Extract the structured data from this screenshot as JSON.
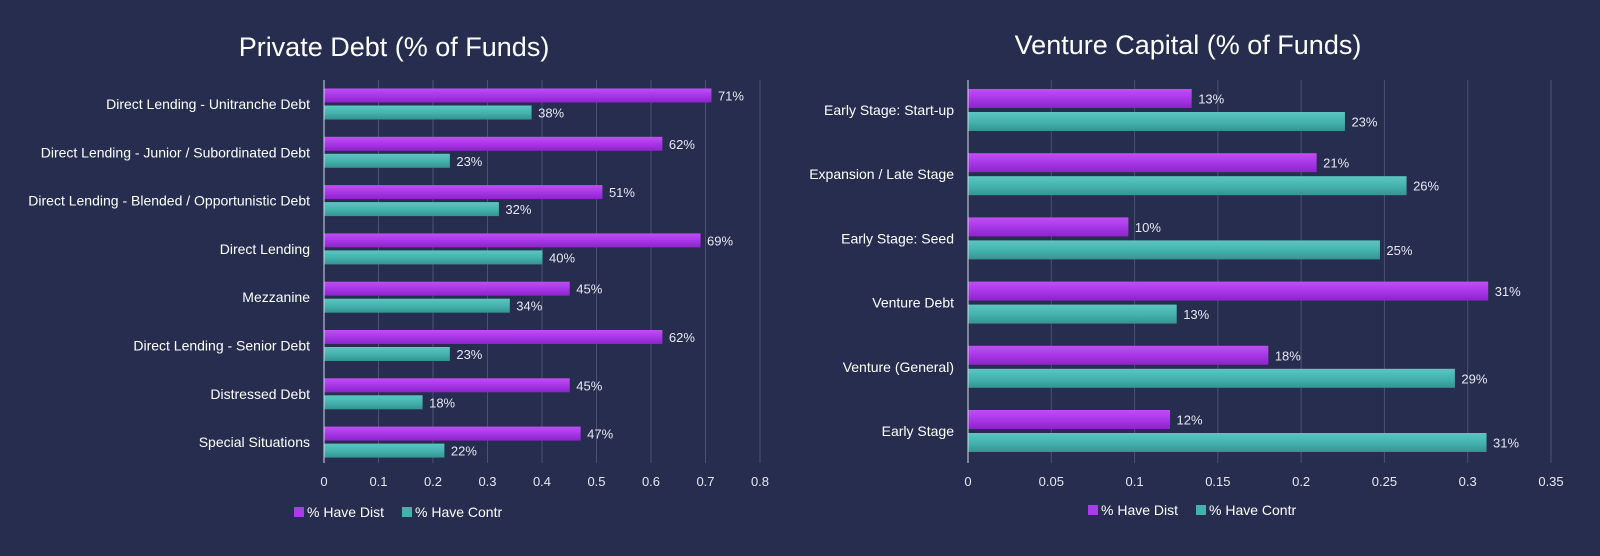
{
  "chart_data": [
    {
      "type": "bar",
      "orientation": "horizontal",
      "title": "Private Debt (% of Funds)",
      "xlabel": "",
      "ylabel": "",
      "xlim": [
        0,
        0.8
      ],
      "ticks": [
        "0",
        "0.1",
        "0.2",
        "0.3",
        "0.4",
        "0.5",
        "0.6",
        "0.7",
        "0.8"
      ],
      "grid": true,
      "legend_position": "bottom",
      "categories": [
        "Direct Lending - Unitranche Debt",
        "Direct Lending - Junior / Subordinated Debt",
        "Direct Lending - Blended / Opportunistic Debt",
        "Direct Lending",
        "Mezzanine",
        "Direct Lending - Senior Debt",
        "Distressed Debt",
        "Special Situations"
      ],
      "series": [
        {
          "name": "% Have Dist",
          "color": "#a93cea",
          "values": [
            0.71,
            0.62,
            0.51,
            0.69,
            0.45,
            0.62,
            0.45,
            0.47
          ],
          "labels": [
            "71%",
            "62%",
            "51%",
            "69%",
            "45%",
            "62%",
            "45%",
            "47%"
          ]
        },
        {
          "name": "% Have Contr",
          "color": "#43b1ac",
          "values": [
            0.38,
            0.23,
            0.32,
            0.4,
            0.34,
            0.23,
            0.18,
            0.22
          ],
          "labels": [
            "38%",
            "23%",
            "32%",
            "40%",
            "34%",
            "23%",
            "18%",
            "22%"
          ]
        }
      ]
    },
    {
      "type": "bar",
      "orientation": "horizontal",
      "title": "Venture Capital (% of Funds)",
      "xlabel": "",
      "ylabel": "",
      "xlim": [
        0,
        0.35
      ],
      "ticks": [
        "0",
        "0.05",
        "0.1",
        "0.15",
        "0.2",
        "0.25",
        "0.3",
        "0.35"
      ],
      "grid": true,
      "legend_position": "bottom",
      "categories": [
        "Early Stage: Start-up",
        "Expansion / Late Stage",
        "Early Stage: Seed",
        "Venture Debt",
        "Venture (General)",
        "Early Stage"
      ],
      "series": [
        {
          "name": "% Have Dist",
          "color": "#a93cea",
          "values": [
            0.134,
            0.209,
            0.096,
            0.312,
            0.18,
            0.121
          ],
          "labels": [
            "13%",
            "21%",
            "10%",
            "31%",
            "18%",
            "12%"
          ]
        },
        {
          "name": "% Have Contr",
          "color": "#43b1ac",
          "values": [
            0.226,
            0.263,
            0.247,
            0.125,
            0.292,
            0.311
          ],
          "labels": [
            "23%",
            "26%",
            "25%",
            "13%",
            "29%",
            "31%"
          ]
        }
      ]
    }
  ]
}
